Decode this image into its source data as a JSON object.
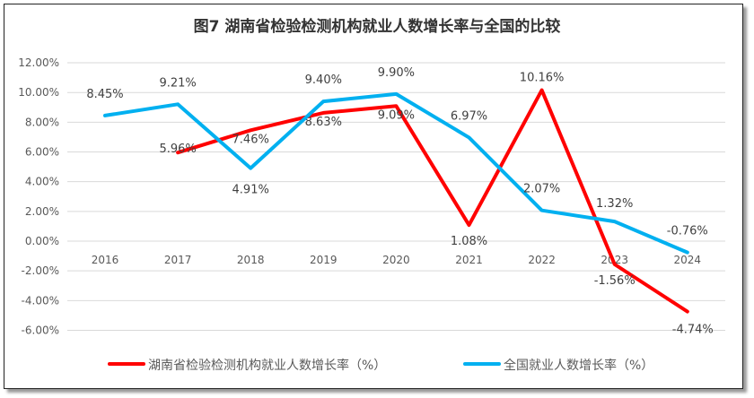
{
  "chart_data": {
    "type": "line",
    "title": "图7 湖南省检验检测机构就业人数增长率与全国的比较",
    "categories": [
      "2016",
      "2017",
      "2018",
      "2019",
      "2020",
      "2021",
      "2022",
      "2023",
      "2024"
    ],
    "series": [
      {
        "name": "湖南省检验检测机构就业人数增长率（%）",
        "color": "#ff0000",
        "values": [
          null,
          5.96,
          7.46,
          8.63,
          9.09,
          1.08,
          10.16,
          -1.56,
          -4.74
        ],
        "labels": [
          "",
          "5.96%",
          "7.46%",
          "8.63%",
          "9.09%",
          "1.08%",
          "10.16%",
          "-1.56%",
          "-4.74%"
        ]
      },
      {
        "name": "全国就业人数增长率（%）",
        "color": "#00b0f0",
        "values": [
          8.45,
          9.21,
          4.91,
          9.4,
          9.9,
          6.97,
          2.07,
          1.32,
          -0.76
        ],
        "labels": [
          "8.45%",
          "9.21%",
          "4.91%",
          "9.40%",
          "9.90%",
          "6.97%",
          "2.07%",
          "1.32%",
          "-0.76%"
        ]
      }
    ],
    "ylim": [
      -6,
      12
    ],
    "yticks": [
      "-6.00%",
      "-4.00%",
      "-2.00%",
      "0.00%",
      "2.00%",
      "4.00%",
      "6.00%",
      "8.00%",
      "10.00%",
      "12.00%"
    ],
    "grid": true,
    "legend": "bottom"
  }
}
